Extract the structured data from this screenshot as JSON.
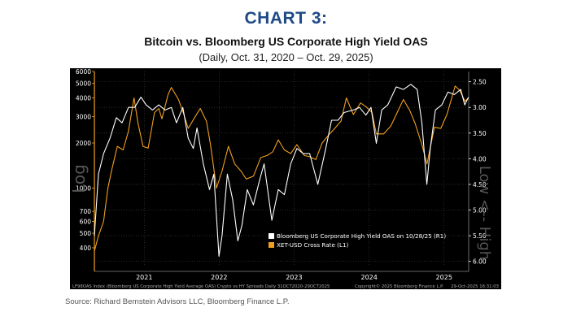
{
  "header": {
    "title": "CHART 3:",
    "subtitle": "Bitcoin vs. Bloomberg US Corporate High Yield OAS",
    "date_range": "(Daily, Oct. 31, 2020 – Oct. 29, 2025)"
  },
  "footer": {
    "source": "Source: Richard Bernstein Advisors LLC, Bloomberg Finance L.P.",
    "bloomberg_note": "LF98OAS Index (Bloomberg US Corporate High Yield Average OAS) Crypto vs HY Spreads Daily 31OCT2020-29OCT2025",
    "copyright": "Copyright© 2025 Bloomberg Finance L.P.",
    "timestamp": "29-Oct-2025 16:31:03"
  },
  "chart_data": {
    "type": "line",
    "background": "#000000",
    "left_axis_label": "Log",
    "right_axis_label": "Low <-- High",
    "left_axis": {
      "scale": "log",
      "range": [
        300,
        6000
      ],
      "ticks": [
        400,
        500,
        600,
        700,
        1000,
        2000,
        3000,
        4000,
        5000,
        6000
      ]
    },
    "right_axis": {
      "scale": "linear",
      "inverted": true,
      "range": [
        2.3,
        6.1
      ],
      "ticks": [
        "2.50",
        "3.00",
        "3.50",
        "4.00",
        "4.50",
        "5.00",
        "5.50",
        "6.00"
      ]
    },
    "x_axis": {
      "range": [
        "2020-10-31",
        "2025-10-29"
      ],
      "tick_labels": [
        "2021",
        "2022",
        "2023",
        "2024",
        "2025"
      ],
      "tick_dates": [
        "2021-07-01",
        "2022-07-01",
        "2023-07-01",
        "2024-07-01",
        "2025-07-01"
      ]
    },
    "legend": {
      "position": "bottom-right",
      "entries": [
        {
          "name": "Bloomberg US Corporate High Yield OAS on 10/28/25  (R1)",
          "color": "#ffffff"
        },
        {
          "name": "XET-USD Cross Rate  (L1)",
          "color": "#f0a020"
        }
      ]
    },
    "series": [
      {
        "name": "Bloomberg US Corporate High Yield OAS on 10/28/25  (R1)",
        "axis": "right",
        "color": "#ffffff",
        "points": [
          [
            "2020-10-31",
            5.5
          ],
          [
            "2020-11-20",
            4.3
          ],
          [
            "2020-12-15",
            3.9
          ],
          [
            "2021-01-15",
            3.6
          ],
          [
            "2021-02-15",
            3.2
          ],
          [
            "2021-03-15",
            3.3
          ],
          [
            "2021-04-15",
            3.0
          ],
          [
            "2021-05-15",
            3.0
          ],
          [
            "2021-06-15",
            2.8
          ],
          [
            "2021-07-10",
            2.95
          ],
          [
            "2021-08-10",
            3.05
          ],
          [
            "2021-09-10",
            2.95
          ],
          [
            "2021-10-10",
            3.05
          ],
          [
            "2021-11-10",
            3.0
          ],
          [
            "2021-12-05",
            3.3
          ],
          [
            "2022-01-05",
            3.0
          ],
          [
            "2022-01-31",
            3.6
          ],
          [
            "2022-02-25",
            3.8
          ],
          [
            "2022-03-15",
            3.4
          ],
          [
            "2022-04-15",
            4.1
          ],
          [
            "2022-05-15",
            4.6
          ],
          [
            "2022-06-05",
            4.3
          ],
          [
            "2022-06-30",
            5.9
          ],
          [
            "2022-07-15",
            5.5
          ],
          [
            "2022-08-10",
            4.3
          ],
          [
            "2022-09-05",
            4.8
          ],
          [
            "2022-09-30",
            5.6
          ],
          [
            "2022-10-20",
            5.3
          ],
          [
            "2022-11-15",
            4.6
          ],
          [
            "2022-12-15",
            4.9
          ],
          [
            "2023-01-15",
            4.4
          ],
          [
            "2023-02-05",
            4.1
          ],
          [
            "2023-03-15",
            5.2
          ],
          [
            "2023-04-15",
            4.6
          ],
          [
            "2023-05-15",
            4.7
          ],
          [
            "2023-06-15",
            4.1
          ],
          [
            "2023-07-15",
            3.8
          ],
          [
            "2023-08-15",
            3.9
          ],
          [
            "2023-09-15",
            3.9
          ],
          [
            "2023-10-25",
            4.5
          ],
          [
            "2023-11-30",
            3.85
          ],
          [
            "2023-12-31",
            3.25
          ],
          [
            "2024-01-31",
            3.25
          ],
          [
            "2024-03-01",
            3.1
          ],
          [
            "2024-04-15",
            3.05
          ],
          [
            "2024-05-15",
            3.0
          ],
          [
            "2024-06-15",
            3.15
          ],
          [
            "2024-07-10",
            3.0
          ],
          [
            "2024-08-05",
            3.7
          ],
          [
            "2024-08-31",
            3.05
          ],
          [
            "2024-09-30",
            2.95
          ],
          [
            "2024-11-10",
            2.6
          ],
          [
            "2024-12-15",
            2.65
          ],
          [
            "2025-01-20",
            2.55
          ],
          [
            "2025-02-20",
            2.65
          ],
          [
            "2025-03-15",
            3.3
          ],
          [
            "2025-04-08",
            4.5
          ],
          [
            "2025-04-25",
            3.8
          ],
          [
            "2025-05-20",
            3.05
          ],
          [
            "2025-06-20",
            2.95
          ],
          [
            "2025-07-20",
            2.7
          ],
          [
            "2025-08-20",
            2.75
          ],
          [
            "2025-09-20",
            2.65
          ],
          [
            "2025-10-10",
            2.95
          ],
          [
            "2025-10-28",
            2.8
          ]
        ]
      },
      {
        "name": "XET-USD Cross Rate  (L1)",
        "axis": "left",
        "color": "#f0a020",
        "points": [
          [
            "2020-10-31",
            380
          ],
          [
            "2020-11-20",
            480
          ],
          [
            "2020-12-15",
            600
          ],
          [
            "2021-01-05",
            1000
          ],
          [
            "2021-01-25",
            1350
          ],
          [
            "2021-02-20",
            1900
          ],
          [
            "2021-03-20",
            1800
          ],
          [
            "2021-04-15",
            2400
          ],
          [
            "2021-05-12",
            4000
          ],
          [
            "2021-06-01",
            2700
          ],
          [
            "2021-06-25",
            1900
          ],
          [
            "2021-07-20",
            1850
          ],
          [
            "2021-08-20",
            3200
          ],
          [
            "2021-09-10",
            3400
          ],
          [
            "2021-09-25",
            2900
          ],
          [
            "2021-10-25",
            4200
          ],
          [
            "2021-11-10",
            4700
          ],
          [
            "2021-12-15",
            3900
          ],
          [
            "2022-01-10",
            3100
          ],
          [
            "2022-01-31",
            2500
          ],
          [
            "2022-02-28",
            2900
          ],
          [
            "2022-03-31",
            3400
          ],
          [
            "2022-04-30",
            2800
          ],
          [
            "2022-05-20",
            1950
          ],
          [
            "2022-06-18",
            1000
          ],
          [
            "2022-07-15",
            1300
          ],
          [
            "2022-08-15",
            1900
          ],
          [
            "2022-09-15",
            1450
          ],
          [
            "2022-10-15",
            1300
          ],
          [
            "2022-11-10",
            1150
          ],
          [
            "2022-12-15",
            1200
          ],
          [
            "2023-01-20",
            1600
          ],
          [
            "2023-02-20",
            1650
          ],
          [
            "2023-03-20",
            1750
          ],
          [
            "2023-04-15",
            2100
          ],
          [
            "2023-05-15",
            1800
          ],
          [
            "2023-06-15",
            1700
          ],
          [
            "2023-07-15",
            1950
          ],
          [
            "2023-08-20",
            1650
          ],
          [
            "2023-09-15",
            1620
          ],
          [
            "2023-10-15",
            1550
          ],
          [
            "2023-11-15",
            2000
          ],
          [
            "2023-12-15",
            2250
          ],
          [
            "2024-01-15",
            2500
          ],
          [
            "2024-02-15",
            2800
          ],
          [
            "2024-03-12",
            4000
          ],
          [
            "2024-04-15",
            3100
          ],
          [
            "2024-05-20",
            3700
          ],
          [
            "2024-06-15",
            3500
          ],
          [
            "2024-07-15",
            3200
          ],
          [
            "2024-08-05",
            2300
          ],
          [
            "2024-09-10",
            2300
          ],
          [
            "2024-10-15",
            2600
          ],
          [
            "2024-11-15",
            3200
          ],
          [
            "2024-12-15",
            3900
          ],
          [
            "2025-01-15",
            3300
          ],
          [
            "2025-02-10",
            2700
          ],
          [
            "2025-03-15",
            1950
          ],
          [
            "2025-04-09",
            1450
          ],
          [
            "2025-05-15",
            2550
          ],
          [
            "2025-06-15",
            2500
          ],
          [
            "2025-07-15",
            3100
          ],
          [
            "2025-08-24",
            4800
          ],
          [
            "2025-09-15",
            4500
          ],
          [
            "2025-10-11",
            3800
          ],
          [
            "2025-10-28",
            4000
          ]
        ]
      }
    ]
  }
}
